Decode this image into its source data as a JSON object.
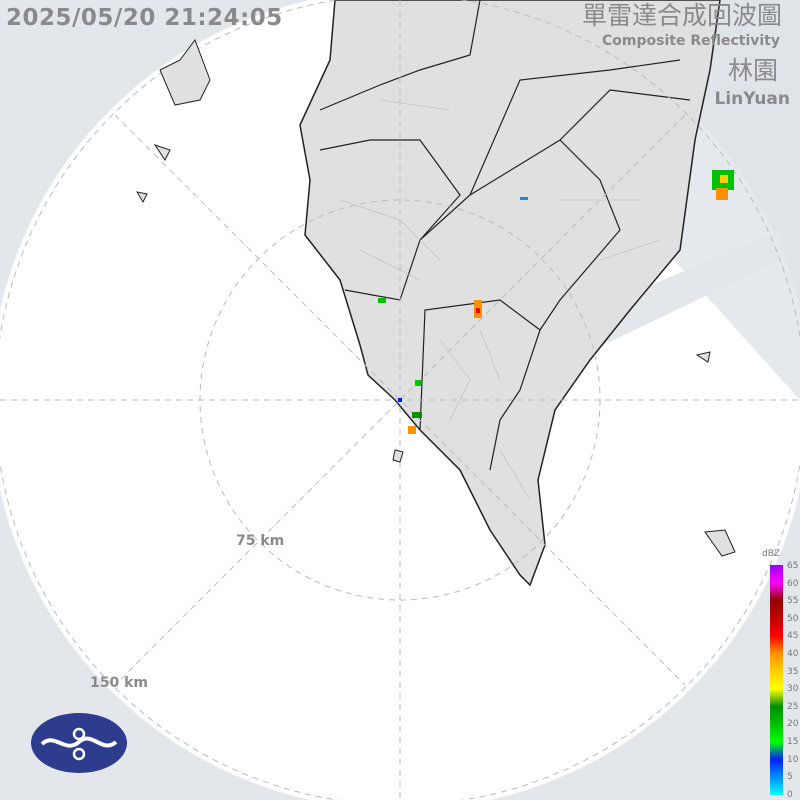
{
  "header": {
    "timestamp": "2025/05/20 21:24:05",
    "title_zh": "單雷達合成回波圖",
    "title_en": "Composite Reflectivity",
    "station_zh": "林園",
    "station_en": "LinYuan"
  },
  "range_rings": [
    "75 km",
    "150 km"
  ],
  "legend": {
    "unit": "dBZ",
    "ticks": [
      "65",
      "60",
      "55",
      "50",
      "45",
      "40",
      "35",
      "30",
      "25",
      "20",
      "15",
      "10",
      "5",
      "0"
    ],
    "colors": [
      "#00ffff",
      "#0090ff",
      "#0020ff",
      "#00ff00",
      "#00c000",
      "#009000",
      "#ffff00",
      "#ffd000",
      "#ff9000",
      "#ff0000",
      "#c00000",
      "#900000",
      "#ff00ff",
      "#9900ff"
    ]
  },
  "colors": {
    "land": "#e0e0e0",
    "outside": "#e3e7eb",
    "border": "#222222"
  }
}
